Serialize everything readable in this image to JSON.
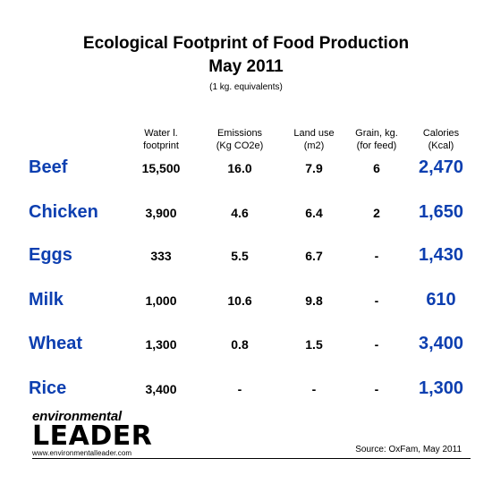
{
  "chart_data": {
    "type": "table",
    "title": "Ecological Footprint of Food Production",
    "subtitle": "May 2011",
    "note": "(1 kg. equivalents)",
    "columns": [
      {
        "line1": "Water l.",
        "line2": "footprint"
      },
      {
        "line1": "Emissions",
        "line2": "(Kg CO2e)"
      },
      {
        "line1": "Land use",
        "line2": "(m2)"
      },
      {
        "line1": "Grain, kg.",
        "line2": "(for feed)"
      },
      {
        "line1": "Calories",
        "line2": "(Kcal)"
      }
    ],
    "rows": [
      {
        "label": "Beef",
        "water": "15,500",
        "emissions": "16.0",
        "land": "7.9",
        "grain": "6",
        "calories": "2,470"
      },
      {
        "label": "Chicken",
        "water": "3,900",
        "emissions": "4.6",
        "land": "6.4",
        "grain": "2",
        "calories": "1,650"
      },
      {
        "label": "Eggs",
        "water": "333",
        "emissions": "5.5",
        "land": "6.7",
        "grain": "-",
        "calories": "1,430"
      },
      {
        "label": "Milk",
        "water": "1,000",
        "emissions": "10.6",
        "land": "9.8",
        "grain": "-",
        "calories": "610"
      },
      {
        "label": "Wheat",
        "water": "1,300",
        "emissions": "0.8",
        "land": "1.5",
        "grain": "-",
        "calories": "3,400"
      },
      {
        "label": "Rice",
        "water": "3,400",
        "emissions": "-",
        "land": "-",
        "grain": "-",
        "calories": "1,300"
      }
    ],
    "source": "Source: OxFam, May 2011"
  },
  "logo": {
    "line1": "environmental",
    "line2": "LEADER",
    "url": "www.environmentalleader.com"
  },
  "colors": {
    "accent": "#0d3fb0",
    "logo_dot": "#7a8b1a"
  }
}
